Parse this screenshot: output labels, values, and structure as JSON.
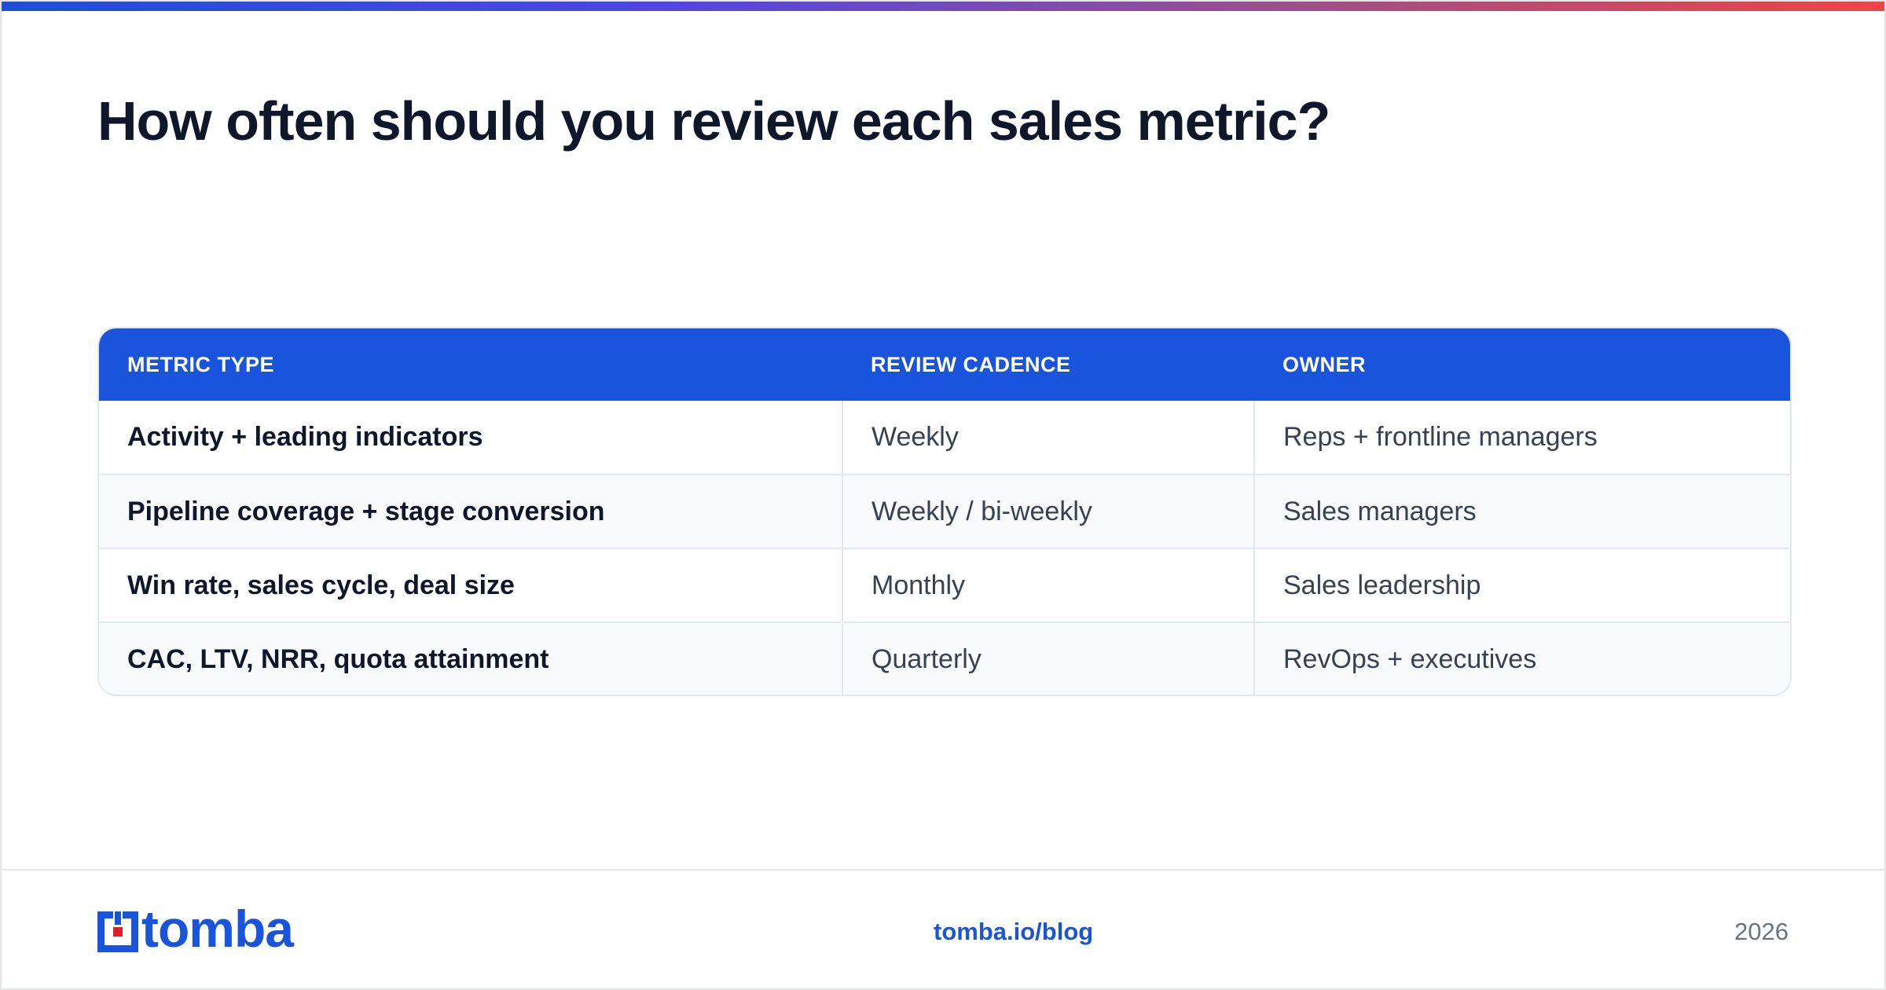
{
  "title": "How often should you review each sales metric?",
  "table": {
    "headers": [
      "METRIC TYPE",
      "REVIEW CADENCE",
      "OWNER"
    ],
    "rows": [
      [
        "Activity + leading indicators",
        "Weekly",
        "Reps + frontline managers"
      ],
      [
        "Pipeline coverage + stage conversion",
        "Weekly / bi-weekly",
        "Sales managers"
      ],
      [
        "Win rate, sales cycle, deal size",
        "Monthly",
        "Sales leadership"
      ],
      [
        "CAC, LTV, NRR, quota attainment",
        "Quarterly",
        "RevOps + executives"
      ]
    ]
  },
  "footer": {
    "logo_text": "tomba",
    "link": "tomba.io/blog",
    "year": "2026"
  },
  "colors": {
    "accent": "#1a54dc",
    "logo_red": "#e11d2a",
    "gradient_start": "#1d4ed8",
    "gradient_end": "#ef4444"
  },
  "icons": {
    "logo": "tomba-logo-mark-icon"
  }
}
